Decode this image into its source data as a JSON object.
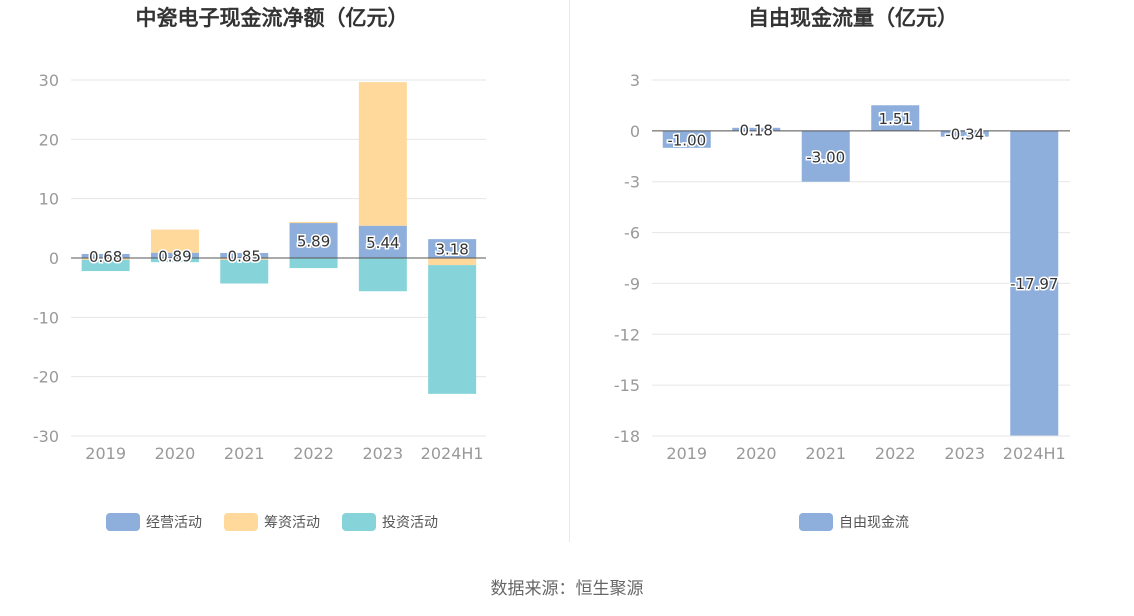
{
  "chart_data": [
    {
      "type": "bar",
      "stacked": true,
      "title": "中瓷电子现金流净额（亿元）",
      "categories": [
        "2019",
        "2020",
        "2021",
        "2022",
        "2023",
        "2024H1"
      ],
      "ylim": [
        -30,
        30
      ],
      "yticks": [
        30,
        20,
        10,
        0,
        -10,
        -20,
        -30
      ],
      "ytick_labels": [
        "30",
        "20",
        "10",
        "0",
        "-10",
        "-20",
        "-30"
      ],
      "grid": true,
      "legend_position": "bottom",
      "series": [
        {
          "name": "经营活动",
          "color": "#8eaedb",
          "values": [
            0.68,
            0.89,
            0.85,
            5.89,
            5.44,
            3.18
          ]
        },
        {
          "name": "筹资活动",
          "color": "#ffd89b",
          "values": [
            -0.3,
            3.9,
            -0.3,
            0.2,
            24.2,
            -1.2
          ]
        },
        {
          "name": "投资活动",
          "color": "#86d4d9",
          "values": [
            -1.9,
            -0.7,
            -4.0,
            -1.7,
            -5.6,
            -21.7
          ]
        }
      ],
      "data_labels": [
        "0.68",
        "0.89",
        "0.85",
        "5.89",
        "5.44",
        "3.18"
      ]
    },
    {
      "type": "bar",
      "title": "自由现金流量（亿元）",
      "categories": [
        "2019",
        "2020",
        "2021",
        "2022",
        "2023",
        "2024H1"
      ],
      "ylim": [
        -18,
        3
      ],
      "yticks": [
        3,
        0,
        -3,
        -6,
        -9,
        -12,
        -15,
        -18
      ],
      "ytick_labels": [
        "3",
        "0",
        "-3",
        "-6",
        "-9",
        "-12",
        "-15",
        "-18"
      ],
      "grid": true,
      "legend_position": "bottom",
      "series": [
        {
          "name": "自由现金流",
          "color": "#8eaedb",
          "values": [
            -1.0,
            0.18,
            -3.0,
            1.51,
            -0.34,
            -17.97
          ]
        }
      ],
      "data_labels": [
        "-1.00",
        "0.18",
        "-3.00",
        "1.51",
        "-0.34",
        "-17.97"
      ]
    }
  ],
  "source": "数据来源：恒生聚源",
  "colors": {
    "axis_text": "#999999",
    "grid": "#e6e6e6",
    "title": "#333333",
    "zero_line": "#555555"
  }
}
